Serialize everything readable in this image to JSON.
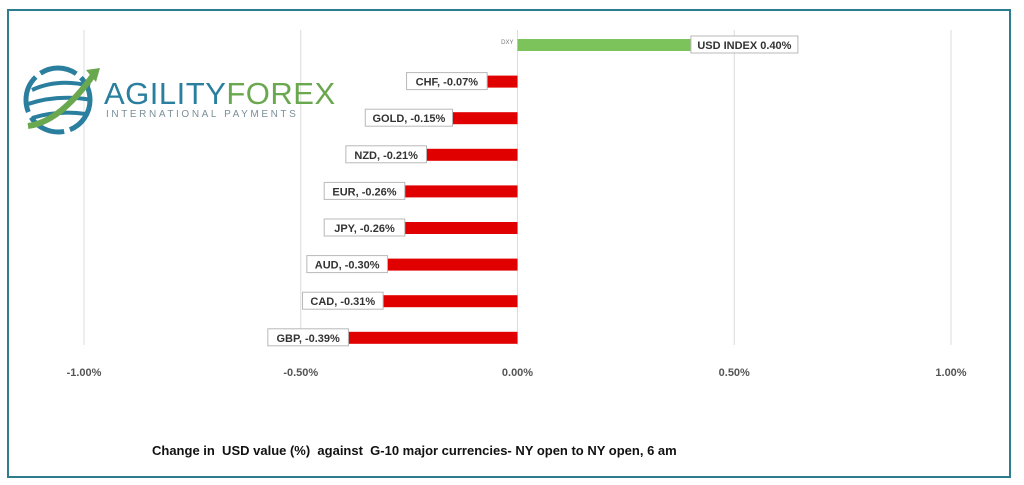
{
  "logo": {
    "name_part1": "AGILITY",
    "name_part2": "FOREX",
    "tagline": "INTERNATIONAL PAYMENTS",
    "colors": {
      "blue": "#2a7f9e",
      "green": "#6aa84f"
    }
  },
  "caption": "Change in  USD value (%)  against  G-10 major currencies- NY open to NY open, 6 am",
  "chart_data": {
    "type": "bar",
    "orientation": "horizontal",
    "xlim": [
      -1.0,
      1.0
    ],
    "x_ticks": [
      -1.0,
      -0.5,
      0.0,
      0.5,
      1.0
    ],
    "x_tick_labels": [
      "-1.00%",
      "-0.50%",
      "0.00%",
      "0.50%",
      "1.00%"
    ],
    "grid": "vertical",
    "bars": [
      {
        "category": "DXY",
        "value": 0.4,
        "label": "USD INDEX 0.40%",
        "color": "#7dc35b"
      },
      {
        "category": "CHF",
        "value": -0.07,
        "label": "CHF, -0.07%",
        "color": "#e00000"
      },
      {
        "category": "GOLD",
        "value": -0.15,
        "label": "GOLD, -0.15%",
        "color": "#e00000"
      },
      {
        "category": "NZD",
        "value": -0.21,
        "label": "NZD, -0.21%",
        "color": "#e00000"
      },
      {
        "category": "EUR",
        "value": -0.26,
        "label": "EUR, -0.26%",
        "color": "#e00000"
      },
      {
        "category": "JPY",
        "value": -0.26,
        "label": "JPY, -0.26%",
        "color": "#e00000"
      },
      {
        "category": "AUD",
        "value": -0.3,
        "label": "AUD, -0.30%",
        "color": "#e00000"
      },
      {
        "category": "CAD",
        "value": -0.31,
        "label": "CAD, -0.31%",
        "color": "#e00000"
      },
      {
        "category": "GBP",
        "value": -0.39,
        "label": "GBP, -0.39%",
        "color": "#e00000"
      }
    ]
  }
}
